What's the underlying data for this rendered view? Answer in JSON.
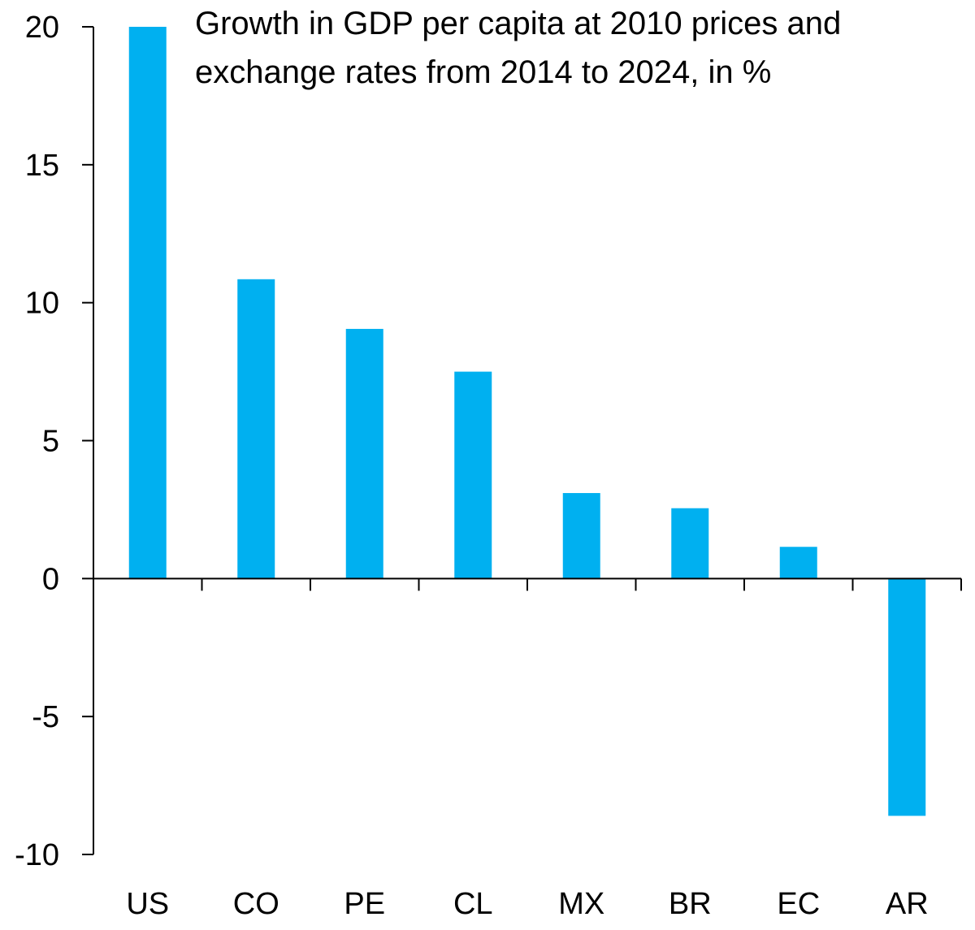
{
  "chart_data": {
    "type": "bar",
    "title_lines": [
      "Growth in GDP per capita at 2010 prices and",
      "exchange rates from 2014 to 2024, in %"
    ],
    "categories": [
      "US",
      "CO",
      "PE",
      "CL",
      "MX",
      "BR",
      "EC",
      "AR"
    ],
    "values": [
      20.0,
      10.85,
      9.05,
      7.5,
      3.1,
      2.55,
      1.15,
      -8.6
    ],
    "ylim": [
      -10,
      20
    ],
    "yticks": [
      -10,
      -5,
      0,
      5,
      10,
      15,
      20
    ],
    "ytick_labels": [
      "-10",
      "-5",
      "0",
      "5",
      "10",
      "15",
      "20"
    ],
    "xlabel": "",
    "ylabel": "",
    "grid": false,
    "colors": {
      "bar": "#00B0F0",
      "axis": "#000000"
    }
  }
}
